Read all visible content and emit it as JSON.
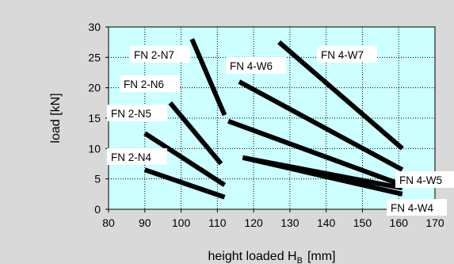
{
  "chart_data": {
    "type": "line",
    "title": "",
    "xlabel": "height loaded H",
    "xlabel_sub": "B",
    "xlabel_unit": "[mm]",
    "ylabel": "load [kN]",
    "xlim": [
      80,
      170
    ],
    "ylim": [
      0,
      30
    ],
    "x_ticks": [
      "80",
      "90",
      "100",
      "110",
      "120",
      "130",
      "140",
      "150",
      "160",
      "170"
    ],
    "y_ticks": [
      "0",
      "5",
      "10",
      "15",
      "20",
      "25",
      "30"
    ],
    "grid": true,
    "plot_background": "#ccffff",
    "line_color": "#000000",
    "series": [
      {
        "name": "FN 2-N4",
        "x": [
          90,
          112
        ],
        "y": [
          6.5,
          2.0
        ]
      },
      {
        "name": "FN 2-N5",
        "x": [
          90,
          112
        ],
        "y": [
          12.5,
          4.0
        ]
      },
      {
        "name": "FN 2-N6",
        "x": [
          97,
          111
        ],
        "y": [
          17.5,
          7.5
        ]
      },
      {
        "name": "FN 2-N7",
        "x": [
          103,
          112
        ],
        "y": [
          28.0,
          15.5
        ]
      },
      {
        "name": "FN 4-W6",
        "x": [
          113,
          161
        ],
        "y": [
          14.5,
          4.0
        ]
      },
      {
        "name": "FN 4-W6",
        "x": [
          116,
          161
        ],
        "y": [
          21.0,
          6.5
        ]
      },
      {
        "name": "FN 4-W7",
        "x": [
          127,
          161
        ],
        "y": [
          27.5,
          10.0
        ]
      },
      {
        "name": "FN 4-W5",
        "x": [
          117,
          161
        ],
        "y": [
          8.5,
          3.5
        ]
      },
      {
        "name": "FN 4-W4",
        "x": [
          117,
          161
        ],
        "y": [
          8.5,
          2.5
        ]
      }
    ],
    "labels": [
      "FN 2-N7",
      "FN 2-N6",
      "FN 2-N5",
      "FN 2-N4",
      "FN 4-W6",
      "FN 4-W7",
      "FN 4-W5",
      "FN 4-W4"
    ]
  }
}
